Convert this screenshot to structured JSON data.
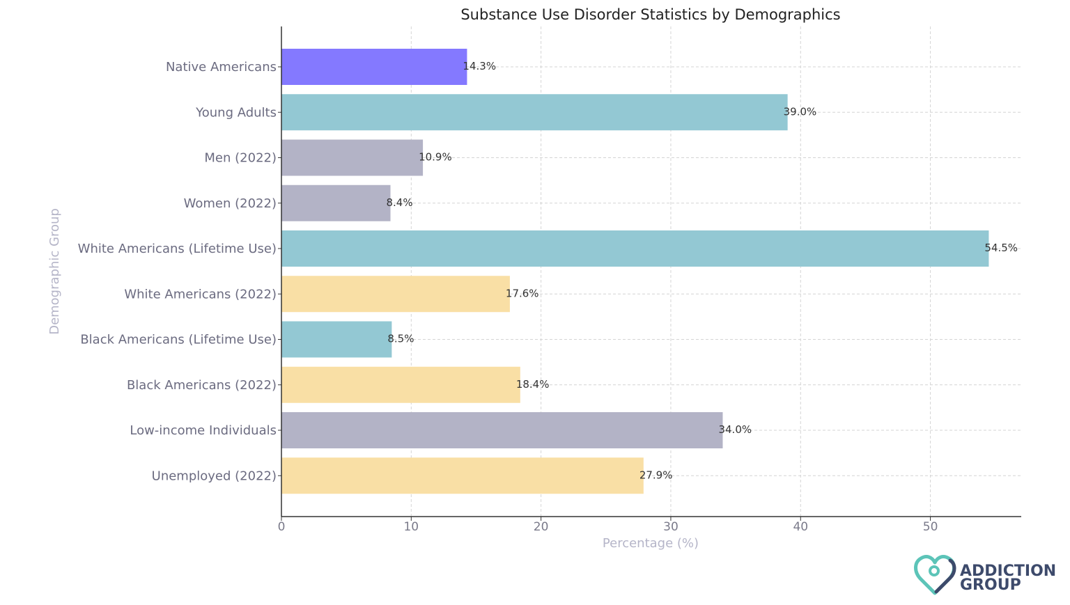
{
  "chart_data": {
    "type": "bar",
    "orientation": "horizontal",
    "title": "Substance Use Disorder Statistics by Demographics",
    "xlabel": "Percentage (%)",
    "ylabel": "Demographic Group",
    "xlim": [
      0,
      57
    ],
    "xticks": [
      0,
      10,
      20,
      30,
      40,
      50
    ],
    "grid": true,
    "categories": [
      "Native Americans",
      "Young Adults",
      "Men (2022)",
      "Women (2022)",
      "White Americans (Lifetime Use)",
      "White Americans (2022)",
      "Black Americans (Lifetime Use)",
      "Black Americans (2022)",
      "Low-income Individuals",
      "Unemployed (2022)"
    ],
    "values": [
      14.3,
      39.0,
      10.9,
      8.4,
      54.5,
      17.6,
      8.5,
      18.4,
      34.0,
      27.9
    ],
    "value_labels": [
      "14.3%",
      "39.0%",
      "10.9%",
      "8.4%",
      "54.5%",
      "17.6%",
      "8.5%",
      "18.4%",
      "34.0%",
      "27.9%"
    ],
    "bar_colors": [
      "#8479ff",
      "#93c8d3",
      "#b3b3c6",
      "#b3b3c6",
      "#93c8d3",
      "#f9dfa5",
      "#93c8d3",
      "#f9dfa5",
      "#b3b3c6",
      "#f9dfa5"
    ]
  },
  "logo": {
    "line1": "ADDICTION",
    "line2": "GROUP",
    "colors": {
      "teal": "#5cc4b8",
      "navy": "#3d4a6b"
    }
  }
}
